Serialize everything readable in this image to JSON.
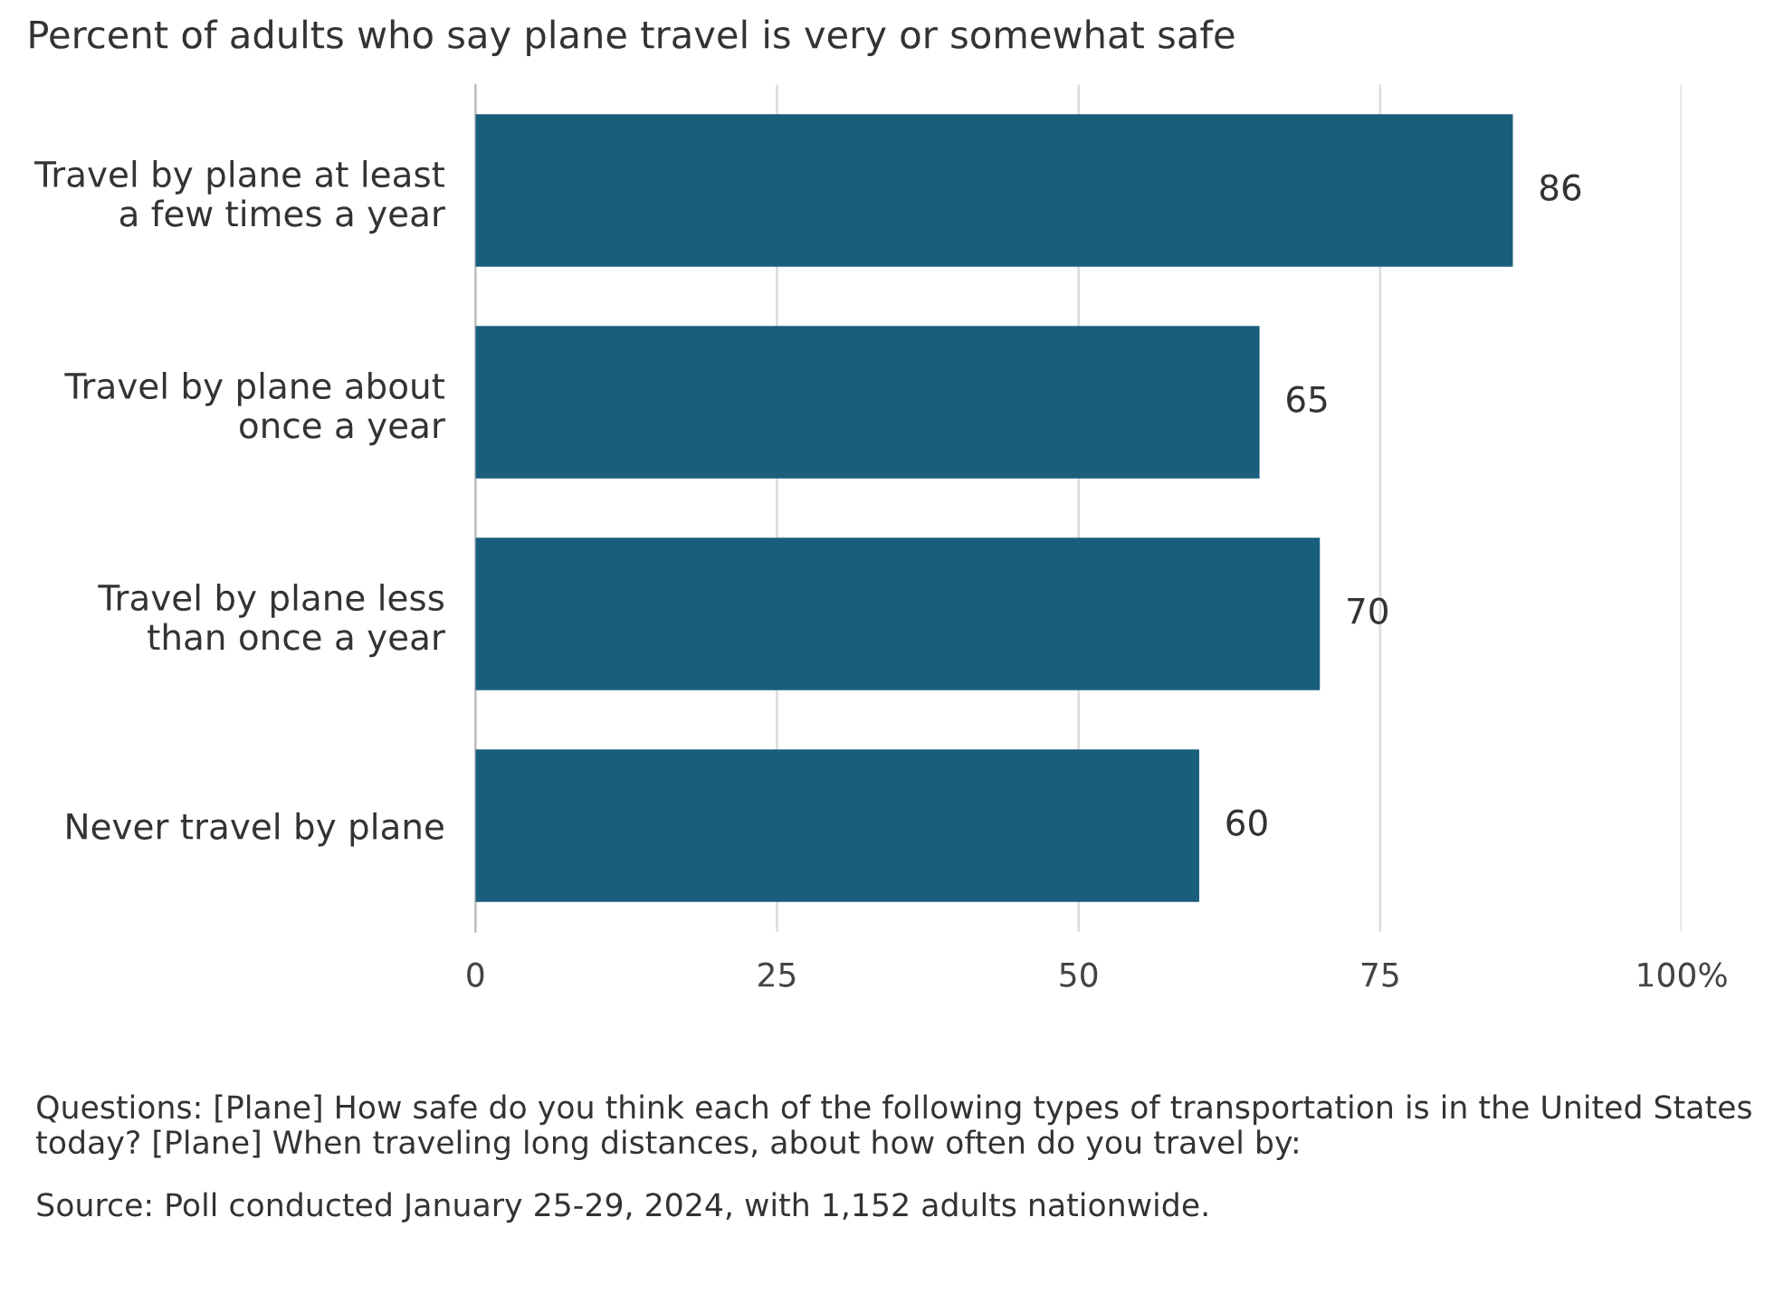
{
  "chart_data": {
    "type": "bar",
    "orientation": "horizontal",
    "title": "Percent of adults who say plane travel is very or somewhat safe",
    "categories": [
      "Travel by plane at least\na few times a year",
      "Travel by plane about\nonce a year",
      "Travel by plane less\nthan once a year",
      "Never travel by plane"
    ],
    "values": [
      86,
      65,
      70,
      60
    ],
    "color": "#1a5e7e",
    "data_labels": true,
    "xlim": [
      0,
      100
    ],
    "xticks": [
      0,
      25,
      50,
      75,
      {
        "value": 100,
        "label": "100%"
      }
    ],
    "grid": "x",
    "legend": false,
    "annotations": [
      "Questions: [Plane] How safe do you think each of the following types of transportation is in the United States today? [Plane] When traveling long distances, about how often do you travel by:",
      "Source: Poll conducted January 25-29, 2024, with 1,152 adults nationwide."
    ]
  }
}
